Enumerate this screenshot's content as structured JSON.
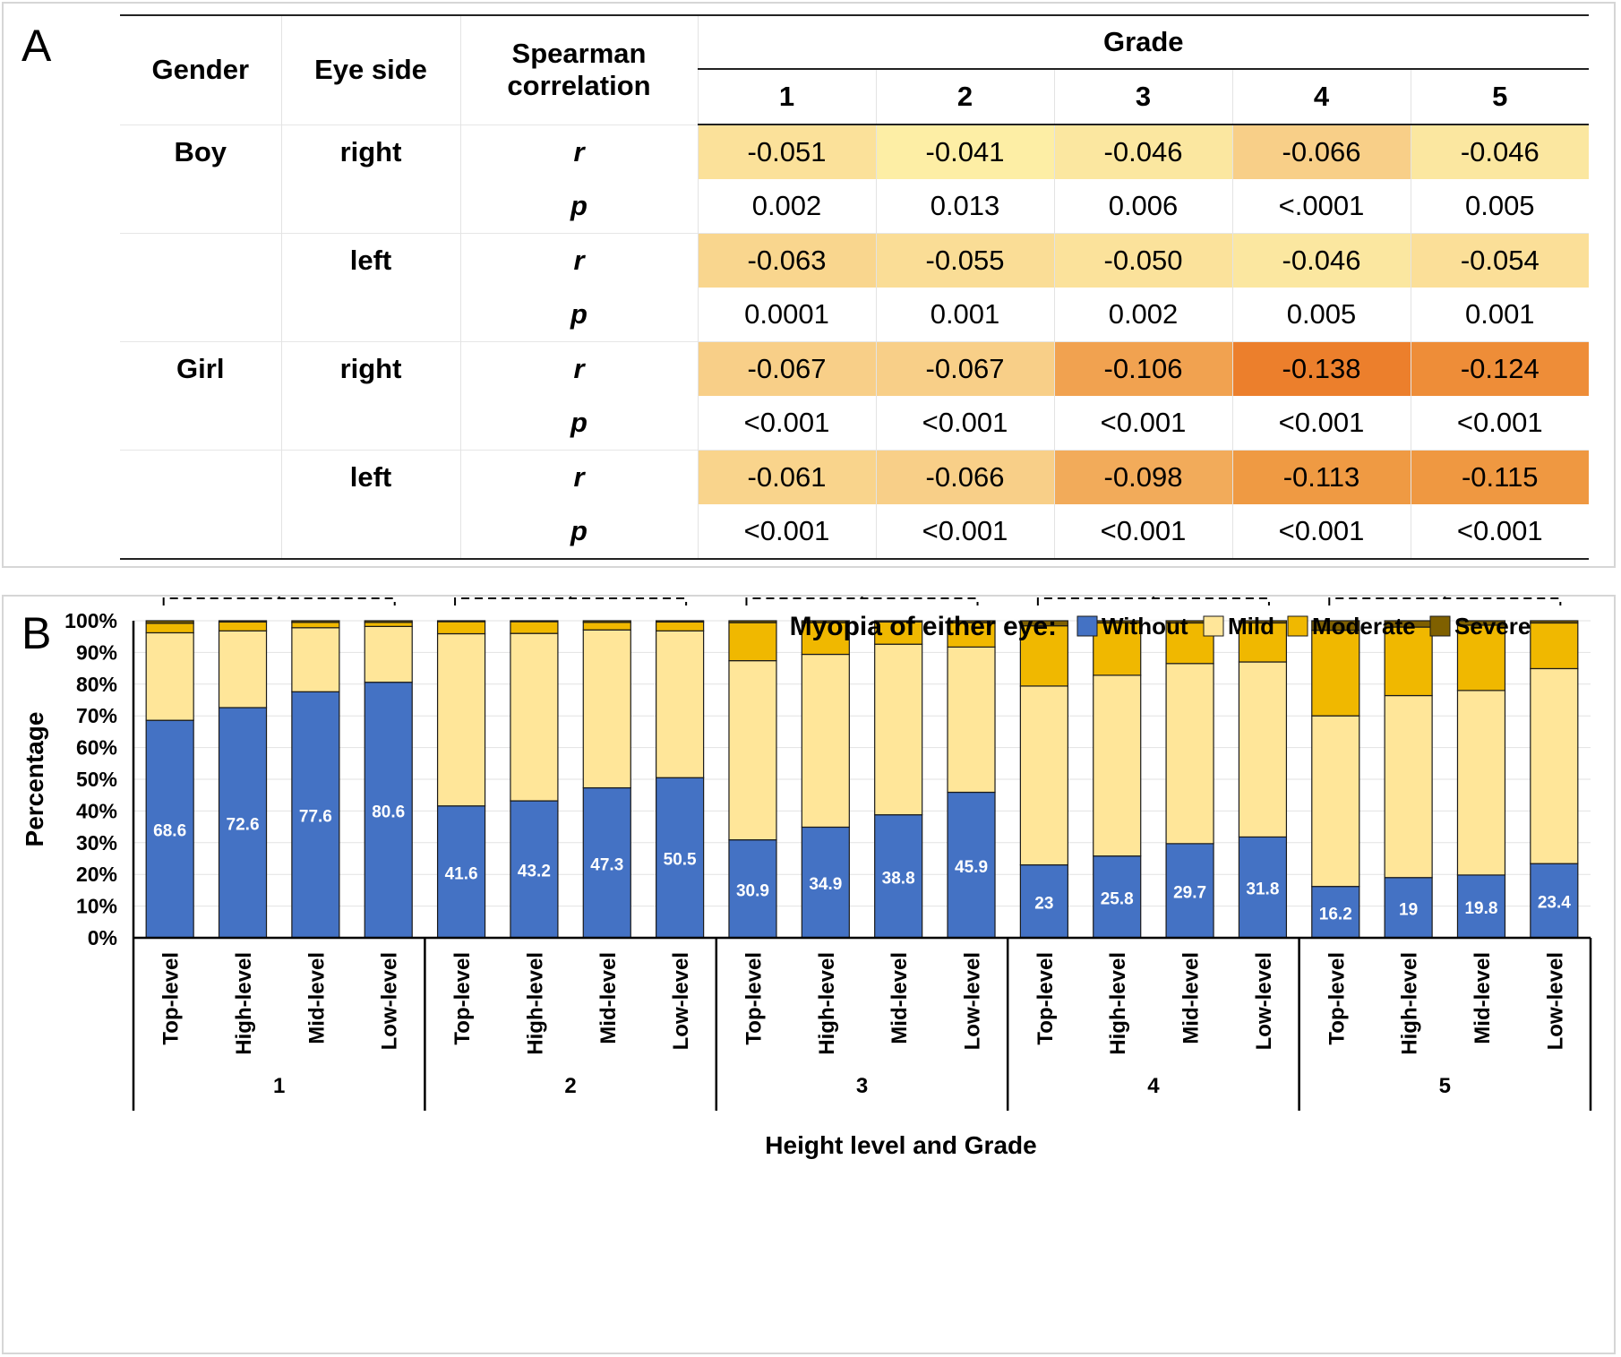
{
  "panelA": {
    "label": "A",
    "headers": {
      "gender": "Gender",
      "eye_side": "Eye side",
      "spearman_line1": "Spearman",
      "spearman_line2": "correlation",
      "grade": "Grade"
    },
    "grades": [
      "1",
      "2",
      "3",
      "4",
      "5"
    ],
    "rows": [
      {
        "gender": "Boy",
        "eye": "right",
        "stat": "r",
        "values": [
          "-0.051",
          "-0.041",
          "-0.046",
          "-0.066",
          "-0.046"
        ],
        "colors": [
          "#fbe19a",
          "#fdeea5",
          "#fbe7a0",
          "#f8cf88",
          "#fbe7a0"
        ]
      },
      {
        "gender": "",
        "eye": "",
        "stat": "p",
        "values": [
          "0.002",
          "0.013",
          "0.006",
          "<.0001",
          "0.005"
        ],
        "colors": [
          "#ffffff",
          "#ffffff",
          "#ffffff",
          "#ffffff",
          "#ffffff"
        ]
      },
      {
        "gender": "",
        "eye": "left",
        "stat": "r",
        "values": [
          "-0.063",
          "-0.055",
          "-0.050",
          "-0.046",
          "-0.054"
        ],
        "colors": [
          "#f9d68e",
          "#fadd96",
          "#fbe29b",
          "#fbe7a0",
          "#fbdf98"
        ]
      },
      {
        "gender": "",
        "eye": "",
        "stat": "p",
        "values": [
          "0.0001",
          "0.001",
          "0.002",
          "0.005",
          "0.001"
        ],
        "colors": [
          "#ffffff",
          "#ffffff",
          "#ffffff",
          "#ffffff",
          "#ffffff"
        ]
      },
      {
        "gender": "Girl",
        "eye": "right",
        "stat": "r",
        "values": [
          "-0.067",
          "-0.067",
          "-0.106",
          "-0.138",
          "-0.124"
        ],
        "colors": [
          "#f8cf88",
          "#f8cf88",
          "#f1a250",
          "#ec7f2c",
          "#ee8d38"
        ]
      },
      {
        "gender": "",
        "eye": "",
        "stat": "p",
        "values": [
          "<0.001",
          "<0.001",
          "<0.001",
          "<0.001",
          "<0.001"
        ],
        "colors": [
          "#ffffff",
          "#ffffff",
          "#ffffff",
          "#ffffff",
          "#ffffff"
        ]
      },
      {
        "gender": "",
        "eye": "left",
        "stat": "r",
        "values": [
          "-0.061",
          "-0.066",
          "-0.098",
          "-0.113",
          "-0.115"
        ],
        "colors": [
          "#f9d48c",
          "#f8cf88",
          "#f2ab5a",
          "#ef9a43",
          "#ef9841"
        ]
      },
      {
        "gender": "",
        "eye": "",
        "stat": "p",
        "values": [
          "<0.001",
          "<0.001",
          "<0.001",
          "<0.001",
          "<0.001"
        ],
        "colors": [
          "#ffffff",
          "#ffffff",
          "#ffffff",
          "#ffffff",
          "#ffffff"
        ]
      }
    ]
  },
  "panelB": {
    "label": "B"
  },
  "chart_data": {
    "type": "stacked_bar",
    "ylabel": "Percentage",
    "xlabel": "Height level and Grade",
    "legend_title": "Myopia of either eye:",
    "legend_position": "top-right",
    "yticks": [
      "0%",
      "10%",
      "20%",
      "30%",
      "40%",
      "50%",
      "60%",
      "70%",
      "80%",
      "90%",
      "100%"
    ],
    "ylim": [
      0,
      100
    ],
    "group_marker": "#",
    "levels": [
      "Top-level",
      "High-level",
      "Mid-level",
      "Low-level"
    ],
    "groups": [
      "1",
      "2",
      "3",
      "4",
      "5"
    ],
    "series": [
      {
        "name": "Without",
        "color": "#4472c4"
      },
      {
        "name": "Mild",
        "color": "#ffe699"
      },
      {
        "name": "Moderate",
        "color": "#f0b800"
      },
      {
        "name": "Severe",
        "color": "#7f6000"
      }
    ],
    "data": [
      [
        [
          68.6,
          27.6,
          3.0,
          0.8
        ],
        [
          72.6,
          24.2,
          2.8,
          0.4
        ],
        [
          77.6,
          20.2,
          1.7,
          0.5
        ],
        [
          80.6,
          17.6,
          1.3,
          0.5
        ]
      ],
      [
        [
          41.6,
          54.3,
          3.8,
          0.3
        ],
        [
          43.2,
          52.8,
          3.7,
          0.3
        ],
        [
          47.3,
          49.8,
          2.4,
          0.5
        ],
        [
          50.5,
          46.3,
          2.8,
          0.4
        ]
      ],
      [
        [
          30.9,
          56.5,
          12.0,
          0.6
        ],
        [
          34.9,
          54.5,
          10.0,
          0.6
        ],
        [
          38.8,
          53.8,
          7.0,
          0.4
        ],
        [
          45.9,
          45.8,
          7.7,
          0.6
        ]
      ],
      [
        [
          23.0,
          56.4,
          19.0,
          1.6
        ],
        [
          25.8,
          57.0,
          16.5,
          0.7
        ],
        [
          29.7,
          56.8,
          12.8,
          0.7
        ],
        [
          31.8,
          55.2,
          12.3,
          0.7
        ]
      ],
      [
        [
          16.2,
          53.8,
          27.0,
          3.0
        ],
        [
          19.0,
          57.4,
          21.6,
          2.0
        ],
        [
          19.8,
          58.2,
          20.6,
          1.4
        ],
        [
          23.4,
          61.5,
          14.4,
          0.7
        ]
      ]
    ]
  }
}
